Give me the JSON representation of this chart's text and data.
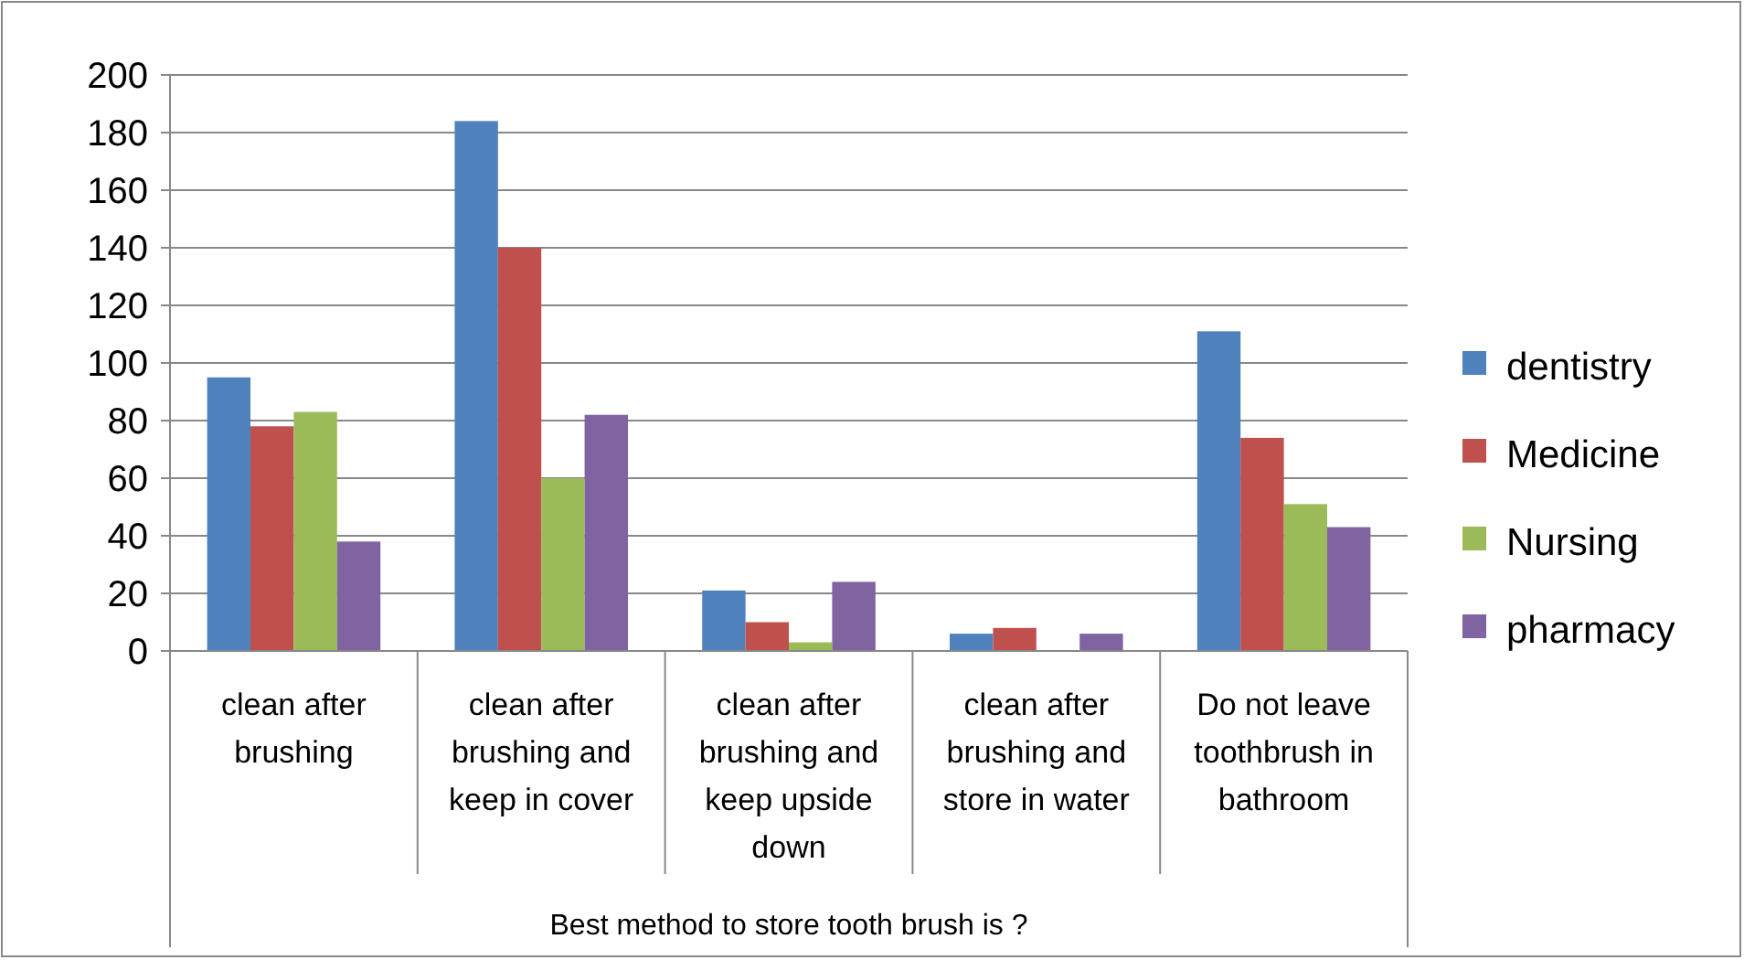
{
  "chart_data": {
    "type": "bar",
    "xlabel": "Best method to store tooth brush is ?",
    "categories": [
      "clean after brushing",
      "clean after brushing and keep in cover",
      "clean after brushing and keep upside down",
      "clean after brushing and store in water",
      "Do not leave toothbrush in bathroom"
    ],
    "series": [
      {
        "name": "dentistry",
        "color": "#4f81bd",
        "values": [
          95,
          184,
          21,
          6,
          111
        ]
      },
      {
        "name": "Medicine",
        "color": "#c0504d",
        "values": [
          78,
          140,
          10,
          8,
          74
        ]
      },
      {
        "name": "Nursing",
        "color": "#9bbb59",
        "values": [
          83,
          60,
          3,
          0,
          51
        ]
      },
      {
        "name": "pharmacy",
        "color": "#8064a2",
        "values": [
          38,
          82,
          24,
          6,
          43
        ]
      }
    ],
    "ylim": [
      0,
      200
    ],
    "yticks": [
      0,
      20,
      40,
      60,
      80,
      100,
      120,
      140,
      160,
      180,
      200
    ],
    "grid": "y",
    "legend": "right"
  }
}
